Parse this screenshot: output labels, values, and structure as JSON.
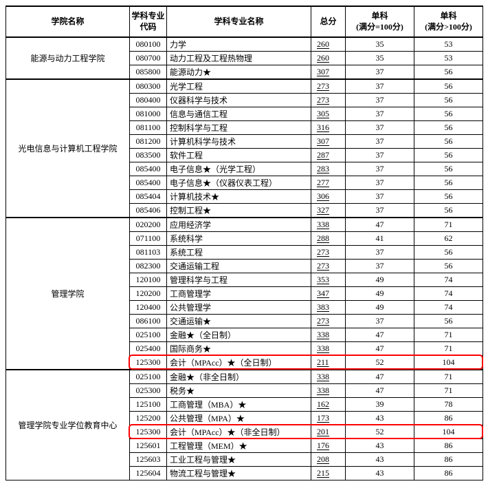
{
  "columns": {
    "college": "学院名称",
    "code": "学科专业\n代码",
    "major": "学科专业名称",
    "total": "总分",
    "sub1": "单科\n(满分=100分)",
    "sub2": "单科\n(满分>100分)"
  },
  "widths": {
    "college": 180,
    "code": 54,
    "major": 210,
    "total": 50,
    "sub1": 100,
    "sub2": 100
  },
  "colors": {
    "border": "#000000",
    "text": "#000000",
    "highlight": "#ff0000",
    "background": "#ffffff"
  },
  "groups": [
    {
      "college": "能源与动力工程学院",
      "rows": [
        {
          "code": "080100",
          "major": "力学",
          "total": 260,
          "sub1": 35,
          "sub2": 53
        },
        {
          "code": "080700",
          "major": "动力工程及工程热物理",
          "total": 260,
          "sub1": 35,
          "sub2": 53
        },
        {
          "code": "085800",
          "major": "能源动力★",
          "total": 307,
          "sub1": 37,
          "sub2": 56
        }
      ]
    },
    {
      "college": "光电信息与计算机工程学院",
      "rows": [
        {
          "code": "080300",
          "major": "光学工程",
          "total": 273,
          "sub1": 37,
          "sub2": 56
        },
        {
          "code": "080400",
          "major": "仪器科学与技术",
          "total": 273,
          "sub1": 37,
          "sub2": 56
        },
        {
          "code": "081000",
          "major": "信息与通信工程",
          "total": 305,
          "sub1": 37,
          "sub2": 56
        },
        {
          "code": "081100",
          "major": "控制科学与工程",
          "total": 316,
          "sub1": 37,
          "sub2": 56
        },
        {
          "code": "081200",
          "major": "计算机科学与技术",
          "total": 307,
          "sub1": 37,
          "sub2": 56
        },
        {
          "code": "083500",
          "major": "软件工程",
          "total": 287,
          "sub1": 37,
          "sub2": 56
        },
        {
          "code": "085400",
          "major": "电子信息★（光学工程）",
          "total": 283,
          "sub1": 37,
          "sub2": 56
        },
        {
          "code": "085400",
          "major": "电子信息★（仪器仪表工程）",
          "total": 277,
          "sub1": 37,
          "sub2": 56
        },
        {
          "code": "085404",
          "major": "计算机技术★",
          "total": 306,
          "sub1": 37,
          "sub2": 56
        },
        {
          "code": "085406",
          "major": "控制工程★",
          "total": 327,
          "sub1": 37,
          "sub2": 56
        }
      ]
    },
    {
      "college": "管理学院",
      "rows": [
        {
          "code": "020200",
          "major": "应用经济学",
          "total": 338,
          "sub1": 47,
          "sub2": 71
        },
        {
          "code": "071100",
          "major": "系统科学",
          "total": 288,
          "sub1": 41,
          "sub2": 62
        },
        {
          "code": "081103",
          "major": "系统工程",
          "total": 273,
          "sub1": 37,
          "sub2": 56
        },
        {
          "code": "082300",
          "major": "交通运输工程",
          "total": 273,
          "sub1": 37,
          "sub2": 56
        },
        {
          "code": "120100",
          "major": "管理科学与工程",
          "total": 353,
          "sub1": 49,
          "sub2": 74
        },
        {
          "code": "120200",
          "major": "工商管理学",
          "total": 347,
          "sub1": 49,
          "sub2": 74
        },
        {
          "code": "120400",
          "major": "公共管理学",
          "total": 383,
          "sub1": 49,
          "sub2": 74
        },
        {
          "code": "086100",
          "major": "交通运输★",
          "total": 273,
          "sub1": 37,
          "sub2": 56
        },
        {
          "code": "025100",
          "major": "金融★（全日制）",
          "total": 338,
          "sub1": 47,
          "sub2": 71
        },
        {
          "code": "025400",
          "major": "国际商务★",
          "total": 338,
          "sub1": 47,
          "sub2": 71
        },
        {
          "code": "125300",
          "major": "会计（MPAcc）★（全日制）",
          "total": 211,
          "sub1": 52,
          "sub2": 104,
          "highlight": true
        }
      ]
    },
    {
      "college": "管理学院专业学位教育中心",
      "rows": [
        {
          "code": "025100",
          "major": "金融★（非全日制）",
          "total": 338,
          "sub1": 47,
          "sub2": 71
        },
        {
          "code": "025300",
          "major": "税务★",
          "total": 338,
          "sub1": 47,
          "sub2": 71
        },
        {
          "code": "125100",
          "major": "工商管理（MBA）★",
          "total": 162,
          "sub1": 39,
          "sub2": 78
        },
        {
          "code": "125200",
          "major": "公共管理（MPA）★",
          "total": 173,
          "sub1": 43,
          "sub2": 86
        },
        {
          "code": "125300",
          "major": "会计（MPAcc）★（非全日制）",
          "total": 201,
          "sub1": 52,
          "sub2": 104,
          "highlight": true
        },
        {
          "code": "125601",
          "major": "工程管理（MEM）★",
          "total": 176,
          "sub1": 43,
          "sub2": 86
        },
        {
          "code": "125603",
          "major": "工业工程与管理★",
          "total": 208,
          "sub1": 43,
          "sub2": 86
        },
        {
          "code": "125604",
          "major": "物流工程与管理★",
          "total": 215,
          "sub1": 43,
          "sub2": 86
        }
      ]
    }
  ]
}
